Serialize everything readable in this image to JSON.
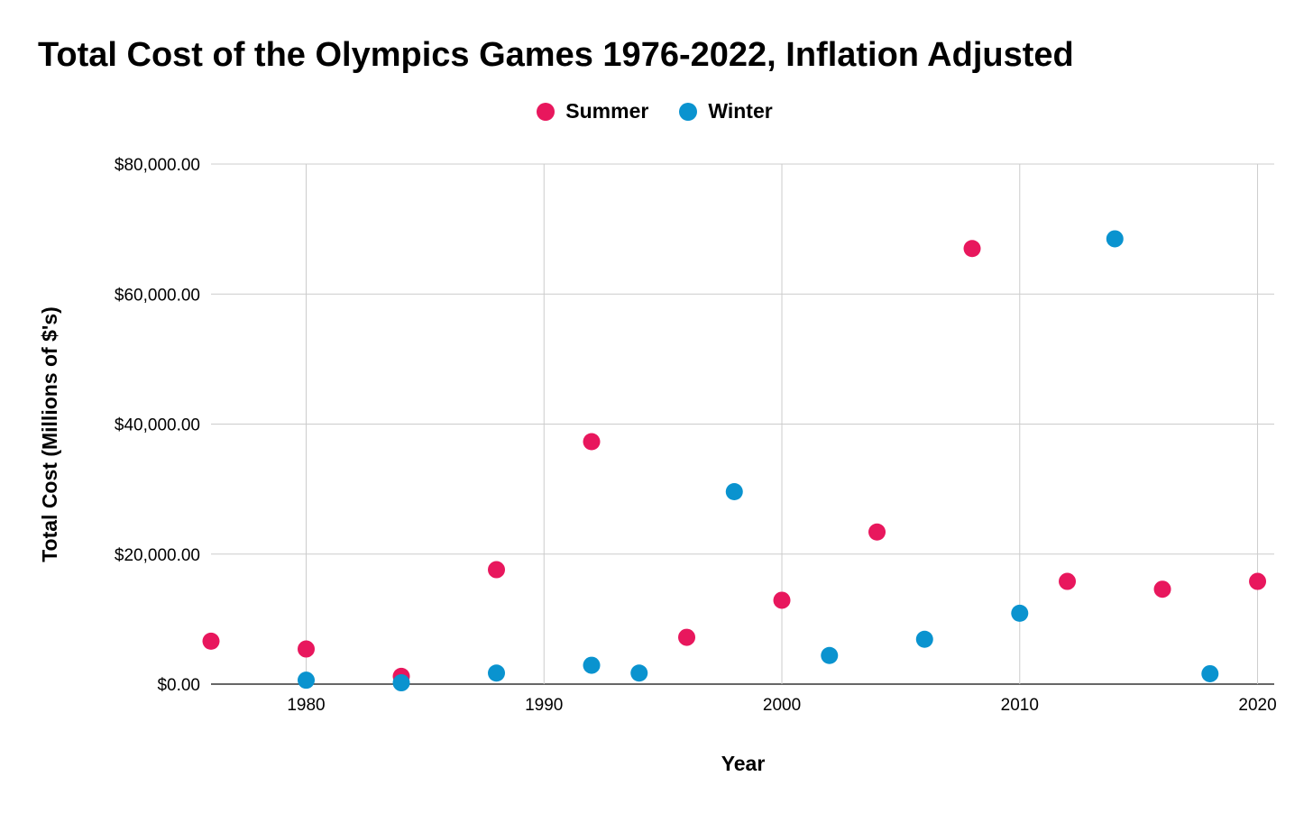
{
  "chart_data": {
    "type": "scatter",
    "title": "Total Cost of the Olympics Games 1976-2022, Inflation Adjusted",
    "xlabel": "Year",
    "ylabel": "Total Cost (Millions of $'s)",
    "xlim": [
      1976,
      2020.7
    ],
    "ylim": [
      0,
      80000
    ],
    "x_ticks": [
      1980,
      1990,
      2000,
      2010,
      2020
    ],
    "y_ticks": [
      0,
      20000,
      40000,
      60000,
      80000
    ],
    "y_tick_labels": [
      "$0.00",
      "$20,000.00",
      "$40,000.00",
      "$60,000.00",
      "$80,000.00"
    ],
    "grid": true,
    "legend_position": "top",
    "series": [
      {
        "name": "Summer",
        "color": "#e8175d",
        "points": [
          {
            "x": 1976,
            "y": 6600
          },
          {
            "x": 1980,
            "y": 5400
          },
          {
            "x": 1984,
            "y": 1200
          },
          {
            "x": 1988,
            "y": 17600
          },
          {
            "x": 1992,
            "y": 37300
          },
          {
            "x": 1996,
            "y": 7200
          },
          {
            "x": 2000,
            "y": 12900
          },
          {
            "x": 2004,
            "y": 23400
          },
          {
            "x": 2008,
            "y": 67000
          },
          {
            "x": 2012,
            "y": 15800
          },
          {
            "x": 2016,
            "y": 14600
          },
          {
            "x": 2020,
            "y": 15800
          }
        ]
      },
      {
        "name": "Winter",
        "color": "#0a93cf",
        "points": [
          {
            "x": 1980,
            "y": 600
          },
          {
            "x": 1984,
            "y": 200
          },
          {
            "x": 1988,
            "y": 1700
          },
          {
            "x": 1992,
            "y": 2900
          },
          {
            "x": 1994,
            "y": 1700
          },
          {
            "x": 1998,
            "y": 29600
          },
          {
            "x": 2002,
            "y": 4400
          },
          {
            "x": 2006,
            "y": 6900
          },
          {
            "x": 2010,
            "y": 10900
          },
          {
            "x": 2014,
            "y": 68500
          },
          {
            "x": 2018,
            "y": 1600
          }
        ]
      }
    ]
  }
}
